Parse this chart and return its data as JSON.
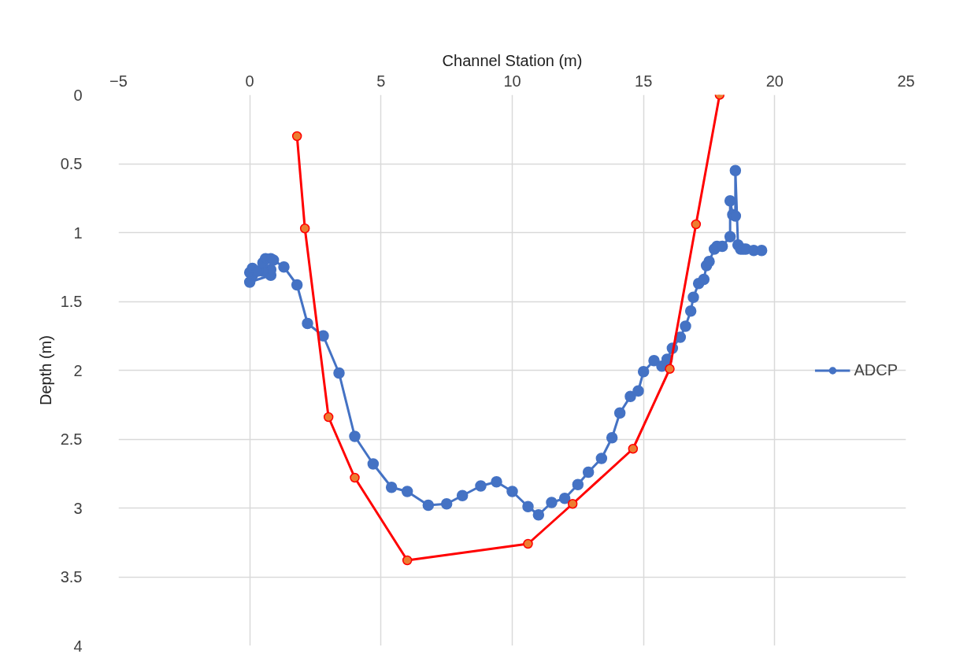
{
  "chart_data": {
    "type": "line",
    "xlabel": "Channel Station (m)",
    "ylabel": "Depth (m)",
    "xlim": [
      -5,
      25
    ],
    "xticks": [
      -5,
      0,
      5,
      10,
      15,
      20,
      25
    ],
    "ylim": [
      4,
      0
    ],
    "yticks": [
      0,
      0.5,
      1,
      1.5,
      2,
      2.5,
      3,
      3.5,
      4
    ],
    "grid": true,
    "legend": "right",
    "marker": "circle",
    "line_style": "solid",
    "series": [
      {
        "name": "ADCP",
        "color": "#4472c4",
        "x": [
          0,
          0.8,
          0.8,
          0.5,
          0.1,
          0.0,
          0.1,
          0.3,
          0.5,
          0.6,
          0.8,
          0.9,
          1.3,
          1.8,
          2.2,
          2.8,
          3.4,
          4.0,
          4.7,
          5.4,
          6.0,
          6.8,
          7.5,
          8.1,
          8.8,
          9.4,
          10.0,
          10.6,
          11.0,
          11.5,
          12.0,
          12.5,
          12.9,
          13.4,
          13.8,
          14.1,
          14.5,
          14.8,
          15.0,
          15.4,
          15.7,
          15.9,
          16.1,
          16.4,
          16.6,
          16.8,
          16.9,
          17.1,
          17.3,
          17.4,
          17.5,
          17.7,
          17.8,
          18.0,
          18.3,
          18.3,
          18.4,
          18.5,
          18.5,
          18.6,
          18.7,
          18.8,
          18.9,
          19.2,
          19.5
        ],
        "values": [
          1.36,
          1.31,
          1.27,
          1.28,
          1.31,
          1.29,
          1.26,
          1.28,
          1.22,
          1.19,
          1.19,
          1.2,
          1.25,
          1.38,
          1.66,
          1.75,
          2.02,
          2.48,
          2.68,
          2.85,
          2.88,
          2.98,
          2.97,
          2.91,
          2.84,
          2.81,
          2.88,
          2.99,
          3.05,
          2.96,
          2.93,
          2.83,
          2.74,
          2.64,
          2.49,
          2.31,
          2.19,
          2.15,
          2.01,
          1.93,
          1.97,
          1.92,
          1.84,
          1.76,
          1.68,
          1.57,
          1.47,
          1.37,
          1.34,
          1.24,
          1.21,
          1.12,
          1.1,
          1.1,
          1.03,
          0.77,
          0.87,
          0.88,
          0.55,
          1.09,
          1.12,
          1.12,
          1.12,
          1.13,
          1.13
        ]
      },
      {
        "color": "#ff0000",
        "x": [
          1.8,
          2.1,
          3.0,
          4.0,
          6.0,
          10.6,
          12.3,
          14.6,
          16.0,
          17.0,
          17.9
        ],
        "values": [
          0.3,
          0.97,
          2.34,
          2.78,
          3.38,
          3.26,
          2.97,
          2.57,
          1.99,
          0.94,
          0.0
        ]
      }
    ]
  }
}
